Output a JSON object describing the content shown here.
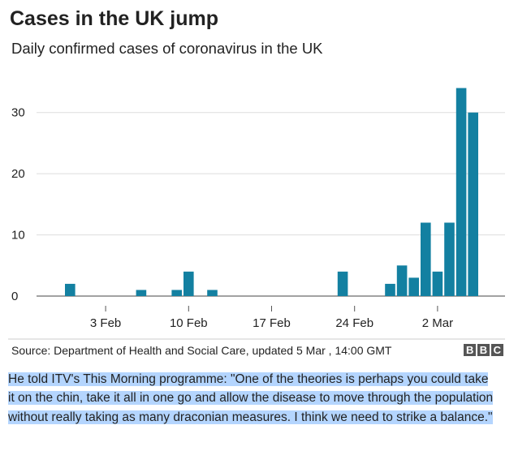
{
  "chart_data": {
    "type": "bar",
    "title": "Cases in the UK jump",
    "subtitle": "Daily confirmed cases of coronavirus in the UK",
    "categories": [
      null,
      null,
      null,
      "3 Feb",
      null,
      null,
      null,
      null,
      null,
      null,
      "10 Feb",
      null,
      null,
      null,
      null,
      null,
      null,
      "17 Feb",
      null,
      null,
      null,
      null,
      null,
      null,
      "24 Feb",
      null,
      null,
      null,
      null,
      null,
      null,
      "2 Mar",
      null,
      null,
      null
    ],
    "values": [
      2,
      0,
      0,
      0,
      0,
      0,
      1,
      0,
      0,
      1,
      4,
      0,
      1,
      0,
      0,
      0,
      0,
      0,
      0,
      0,
      0,
      0,
      0,
      4,
      0,
      0,
      0,
      2,
      5,
      3,
      12,
      4,
      12,
      34,
      30
    ],
    "color": "#1380a1",
    "ylim": [
      0,
      35
    ],
    "yticks": [
      0,
      10,
      20,
      30
    ],
    "grid": true,
    "source": "Source: Department of Health and Social Care, updated 5 Mar , 14:00 GMT",
    "logo": "BBC"
  },
  "quote": "He told ITV's This Morning programme: \"One of the theories is perhaps you could take it on the chin, take it all in one go and allow the disease to move through the population without really taking as many draconian measures. I think we need to strike a balance.\""
}
